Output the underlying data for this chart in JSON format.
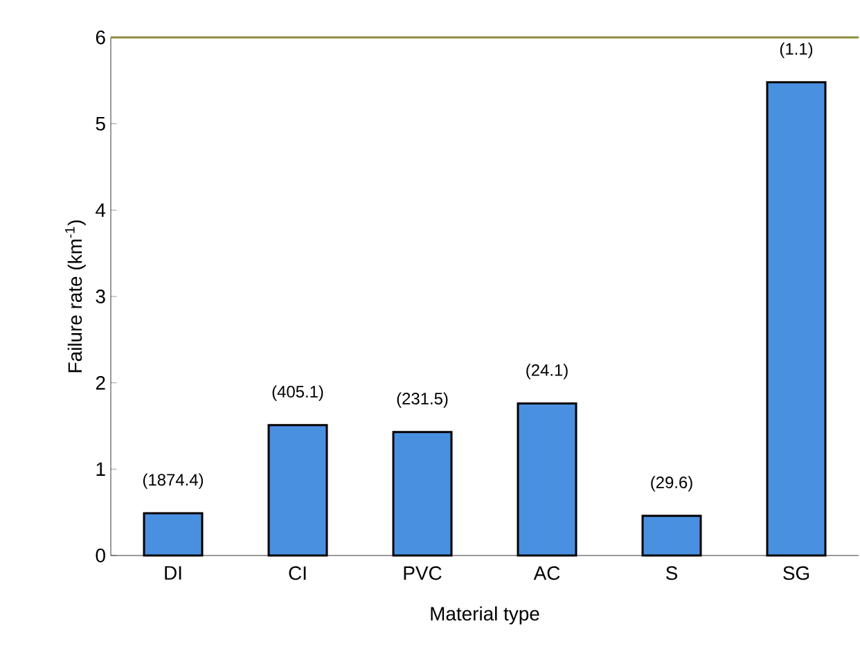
{
  "chart_data": {
    "type": "bar",
    "xlabel": "Material type",
    "ylabel": "Failure rate (km$^{-1}$)",
    "categories": [
      "DI",
      "CI",
      "PVC",
      "AC",
      "S",
      "SG"
    ],
    "values": [
      0.49,
      1.51,
      1.43,
      1.76,
      0.46,
      5.48
    ],
    "annotations": [
      {
        "text": "(1874.4)",
        "x": "DI",
        "y": 0.49
      },
      {
        "text": "(405.1)",
        "x": "CI",
        "y": 1.51
      },
      {
        "text": "(231.5)",
        "x": "PVC",
        "y": 1.43
      },
      {
        "text": "(24.1)",
        "x": "AC",
        "y": 1.76
      },
      {
        "text": "(29.6)",
        "x": "S",
        "y": 0.46
      },
      {
        "text": "(1.1)",
        "x": "SG",
        "y": 5.48
      }
    ],
    "color": "#4a90e0",
    "ylim": [
      0,
      6
    ],
    "yticks": [
      0,
      1,
      2,
      3,
      4,
      5,
      6
    ],
    "grid": false,
    "ref_lines": [
      {
        "axis": "y",
        "value": 6,
        "color": "#8c8c3c"
      }
    ]
  }
}
